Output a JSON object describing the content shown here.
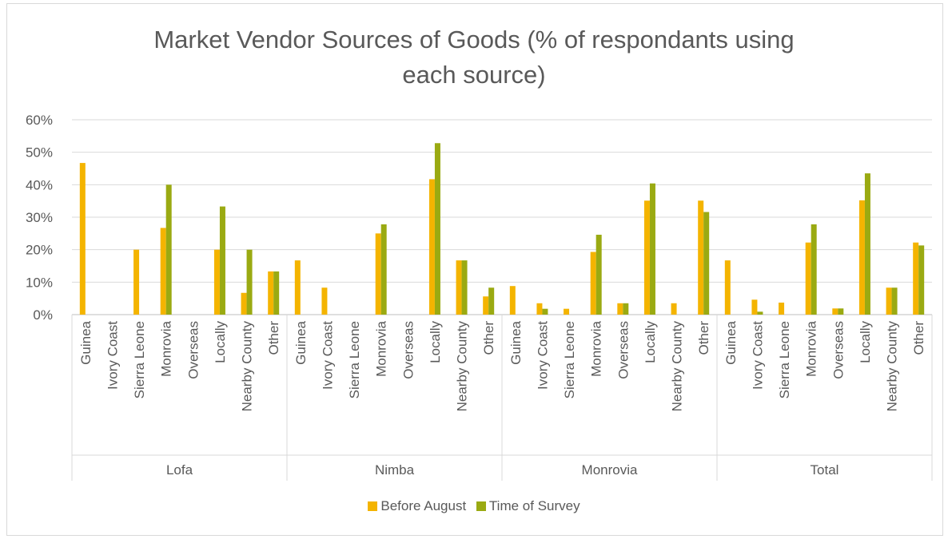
{
  "chart_data": {
    "type": "bar",
    "title_lines": [
      "Market Vendor Sources of Goods (% of respondants using",
      "each source)"
    ],
    "ylim": [
      0,
      60
    ],
    "y_ticks": [
      "0%",
      "10%",
      "20%",
      "30%",
      "40%",
      "50%",
      "60%"
    ],
    "grid": true,
    "legend_position": "bottom",
    "groups": [
      {
        "name": "Lofa",
        "categories": [
          "Guinea",
          "Ivory Coast",
          "Sierra Leone",
          "Monrovia",
          "Overseas",
          "Locally",
          "Nearby County",
          "Other"
        ],
        "before": [
          46.7,
          0,
          20,
          26.7,
          0,
          20,
          6.7,
          13.3
        ],
        "survey": [
          0,
          0,
          0,
          40,
          0,
          33.3,
          20,
          13.3
        ]
      },
      {
        "name": "Nimba",
        "categories": [
          "Guinea",
          "Ivory Coast",
          "Sierra Leone",
          "Monrovia",
          "Overseas",
          "Locally",
          "Nearby County",
          "Other"
        ],
        "before": [
          16.7,
          8.3,
          0,
          25,
          0,
          41.7,
          16.7,
          5.6
        ],
        "survey": [
          0,
          0,
          0,
          27.8,
          0,
          52.8,
          16.7,
          8.3
        ]
      },
      {
        "name": "Monrovia",
        "categories": [
          "Guinea",
          "Ivory Coast",
          "Sierra Leone",
          "Monrovia",
          "Overseas",
          "Locally",
          "Nearby County",
          "Other"
        ],
        "before": [
          8.8,
          3.5,
          1.8,
          19.3,
          3.5,
          35.1,
          3.5,
          35.1
        ],
        "survey": [
          0,
          1.8,
          0,
          24.6,
          3.5,
          40.4,
          0,
          31.6
        ]
      },
      {
        "name": "Total",
        "categories": [
          "Guinea",
          "Ivory Coast",
          "Sierra Leone",
          "Monrovia",
          "Overseas",
          "Locally",
          "Nearby County",
          "Other"
        ],
        "before": [
          16.7,
          4.6,
          3.7,
          22.2,
          1.9,
          35.2,
          8.3,
          22.2
        ],
        "survey": [
          0,
          0.9,
          0,
          27.8,
          1.9,
          43.5,
          8.3,
          21.3
        ]
      }
    ],
    "series": [
      {
        "name": "Before August",
        "color": "#f4b400"
      },
      {
        "name": "Time of Survey",
        "color": "#9aaa12"
      }
    ]
  }
}
